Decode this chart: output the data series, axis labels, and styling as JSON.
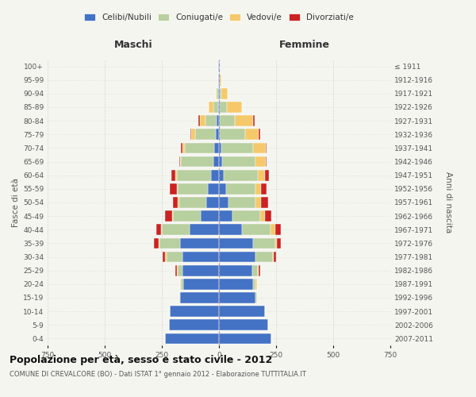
{
  "age_groups": [
    "0-4",
    "5-9",
    "10-14",
    "15-19",
    "20-24",
    "25-29",
    "30-34",
    "35-39",
    "40-44",
    "45-49",
    "50-54",
    "55-59",
    "60-64",
    "65-69",
    "70-74",
    "75-79",
    "80-84",
    "85-89",
    "90-94",
    "95-99",
    "100+"
  ],
  "birth_years": [
    "2007-2011",
    "2002-2006",
    "1997-2001",
    "1992-1996",
    "1987-1991",
    "1982-1986",
    "1977-1981",
    "1972-1976",
    "1967-1971",
    "1962-1966",
    "1957-1961",
    "1952-1956",
    "1947-1951",
    "1942-1946",
    "1937-1941",
    "1932-1936",
    "1927-1931",
    "1922-1926",
    "1917-1921",
    "1912-1916",
    "≤ 1911"
  ],
  "male": {
    "celibi": [
      235,
      220,
      215,
      170,
      155,
      160,
      160,
      170,
      130,
      80,
      55,
      50,
      35,
      25,
      20,
      15,
      10,
      5,
      4,
      2,
      2
    ],
    "coniugati": [
      0,
      0,
      0,
      5,
      10,
      20,
      70,
      90,
      120,
      120,
      120,
      130,
      150,
      140,
      130,
      90,
      50,
      20,
      5,
      2,
      0
    ],
    "vedovi": [
      0,
      0,
      0,
      0,
      5,
      5,
      5,
      5,
      5,
      5,
      5,
      5,
      5,
      5,
      10,
      15,
      25,
      20,
      5,
      0,
      0
    ],
    "divorziati": [
      0,
      0,
      0,
      0,
      0,
      5,
      10,
      20,
      20,
      30,
      20,
      30,
      20,
      5,
      5,
      5,
      5,
      0,
      0,
      0,
      0
    ]
  },
  "female": {
    "nubili": [
      230,
      215,
      200,
      160,
      150,
      145,
      160,
      150,
      100,
      60,
      40,
      30,
      20,
      15,
      10,
      5,
      5,
      5,
      4,
      2,
      2
    ],
    "coniugate": [
      0,
      0,
      0,
      5,
      10,
      25,
      75,
      95,
      125,
      120,
      120,
      130,
      150,
      145,
      140,
      110,
      65,
      30,
      5,
      2,
      0
    ],
    "vedove": [
      0,
      0,
      0,
      0,
      5,
      5,
      5,
      10,
      20,
      20,
      25,
      25,
      30,
      45,
      55,
      60,
      80,
      65,
      30,
      5,
      2
    ],
    "divorziate": [
      0,
      0,
      0,
      0,
      0,
      5,
      10,
      15,
      25,
      30,
      30,
      25,
      20,
      5,
      5,
      5,
      5,
      0,
      0,
      0,
      0
    ]
  },
  "colors": {
    "celibi": "#4472c4",
    "coniugati": "#b8cfa0",
    "vedovi": "#f5c96a",
    "divorziati": "#cc2222"
  },
  "legend_labels": [
    "Celibi/Nubili",
    "Coniugati/e",
    "Vedovi/e",
    "Divorziati/e"
  ],
  "title": "Popolazione per età, sesso e stato civile - 2012",
  "subtitle": "COMUNE DI CREVALCORE (BO) - Dati ISTAT 1° gennaio 2012 - Elaborazione TUTTITALIA.IT",
  "label_maschi": "Maschi",
  "label_femmine": "Femmine",
  "ylabel_left": "Fasce di età",
  "ylabel_right": "Anni di nascita",
  "xlim": 750,
  "background_color": "#f5f5f0",
  "grid_color": "#cccccc"
}
